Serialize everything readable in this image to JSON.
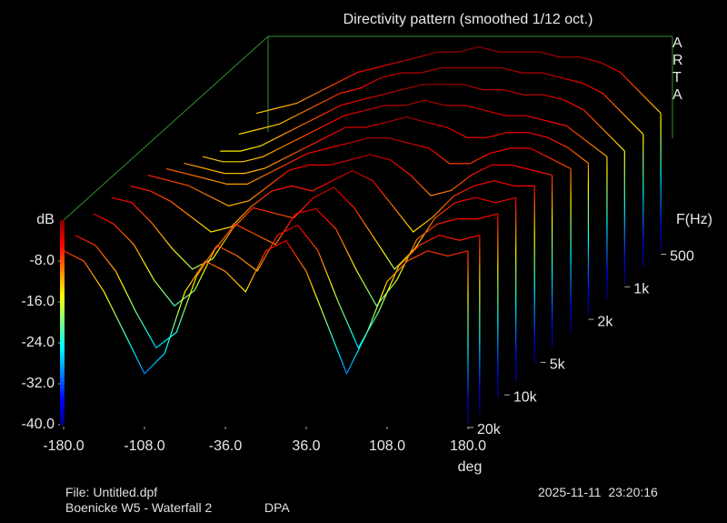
{
  "chart_data": {
    "type": "waterfall",
    "title": "Directivity pattern (smoothed 1/12 oct.)",
    "x_label": "deg",
    "y_label": "dB",
    "z_label": "F(Hz)",
    "xlim": [
      -180,
      180
    ],
    "xticks": [
      {
        "value": -180,
        "label": "-180.0"
      },
      {
        "value": -108,
        "label": "-108.0"
      },
      {
        "value": -36,
        "label": "-36.0"
      },
      {
        "value": 36,
        "label": "36.0"
      },
      {
        "value": 108,
        "label": "108.0"
      },
      {
        "value": 180,
        "label": "180.0"
      }
    ],
    "ylim": [
      -40,
      0
    ],
    "yticks": [
      {
        "value": -40,
        "label": "-40.0"
      },
      {
        "value": -32,
        "label": "-32.0"
      },
      {
        "value": -24,
        "label": "-24.0"
      },
      {
        "value": -16,
        "label": "-16.0"
      },
      {
        "value": -8,
        "label": "-8.0"
      }
    ],
    "zlim": [
      400,
      20000
    ],
    "z_log": true,
    "zticks": [
      {
        "value": 500,
        "label": "500"
      },
      {
        "value": 1000,
        "label": "1k"
      },
      {
        "value": 2000,
        "label": "2k"
      },
      {
        "value": 5000,
        "label": "5k"
      },
      {
        "value": 10000,
        "label": "10k"
      },
      {
        "value": 20000,
        "label": "20k"
      }
    ],
    "x": [
      -180,
      -162,
      -144,
      -126,
      -108,
      -90,
      -72,
      -54,
      -36,
      -18,
      0,
      18,
      36,
      54,
      72,
      90,
      108,
      126,
      144,
      162,
      180
    ],
    "z": [
      500,
      700,
      1000,
      1400,
      2000,
      2800,
      4000,
      5600,
      8000,
      11300,
      16000,
      20000
    ],
    "values": [
      [
        -13,
        -12,
        -11,
        -9,
        -7,
        -5,
        -4,
        -3,
        -2,
        -1,
        -1,
        0,
        -1,
        -1,
        -1,
        -2,
        -2,
        -3,
        -5,
        -9,
        -13
      ],
      [
        -14,
        -13,
        -12,
        -10,
        -8,
        -6,
        -5,
        -3,
        -2,
        -2,
        -1,
        -1,
        -1,
        -1,
        -2,
        -2,
        -3,
        -4,
        -6,
        -10,
        -14
      ],
      [
        -14,
        -14,
        -13,
        -11,
        -9,
        -7,
        -5,
        -4,
        -3,
        -2,
        -1,
        -1,
        -1,
        -2,
        -2,
        -3,
        -3,
        -4,
        -6,
        -10,
        -14
      ],
      [
        -12,
        -13,
        -13,
        -12,
        -10,
        -8,
        -6,
        -4,
        -3,
        -2,
        -2,
        -1,
        -2,
        -2,
        -3,
        -4,
        -4,
        -5,
        -6,
        -9,
        -12
      ],
      [
        -10,
        -11,
        -12,
        -12,
        -11,
        -9,
        -7,
        -5,
        -3,
        -3,
        -2,
        -1,
        -2,
        -3,
        -5,
        -5,
        -4,
        -4,
        -5,
        -7,
        -10
      ],
      [
        -8,
        -9,
        -10,
        -11,
        -11,
        -9,
        -7,
        -5,
        -4,
        -3,
        -2,
        -2,
        -3,
        -4,
        -7,
        -7,
        -5,
        -4,
        -4,
        -6,
        -8
      ],
      [
        -6,
        -7,
        -8,
        -10,
        -12,
        -11,
        -8,
        -5,
        -4,
        -4,
        -3,
        -2,
        -3,
        -6,
        -10,
        -9,
        -6,
        -4,
        -4,
        -5,
        -6
      ],
      [
        -5,
        -6,
        -8,
        -11,
        -14,
        -13,
        -9,
        -6,
        -5,
        -6,
        -4,
        -2,
        -4,
        -9,
        -14,
        -11,
        -7,
        -5,
        -4,
        -5,
        -5
      ],
      [
        -4,
        -5,
        -9,
        -14,
        -18,
        -16,
        -10,
        -6,
        -7,
        -8,
        -4,
        -2,
        -6,
        -12,
        -18,
        -14,
        -8,
        -5,
        -4,
        -5,
        -4
      ],
      [
        -4,
        -6,
        -10,
        -17,
        -22,
        -19,
        -11,
        -6,
        -8,
        -10,
        -4,
        -3,
        -7,
        -15,
        -22,
        -17,
        -9,
        -6,
        -5,
        -5,
        -4
      ],
      [
        -5,
        -7,
        -12,
        -20,
        -27,
        -24,
        -13,
        -7,
        -9,
        -12,
        -5,
        -3,
        -8,
        -18,
        -27,
        -20,
        -11,
        -7,
        -5,
        -6,
        -5
      ],
      [
        -6,
        -8,
        -14,
        -22,
        -30,
        -26,
        -14,
        -8,
        -10,
        -14,
        -6,
        -4,
        -10,
        -20,
        -30,
        -22,
        -12,
        -8,
        -6,
        -7,
        -6
      ]
    ],
    "logo": "ARTA"
  },
  "footer": {
    "file": "File: Untitled.dpf",
    "description": "Boenicke W5 - Waterfall 2",
    "method": "DPA",
    "timestamp": "2025-11-11  23:20:16"
  }
}
